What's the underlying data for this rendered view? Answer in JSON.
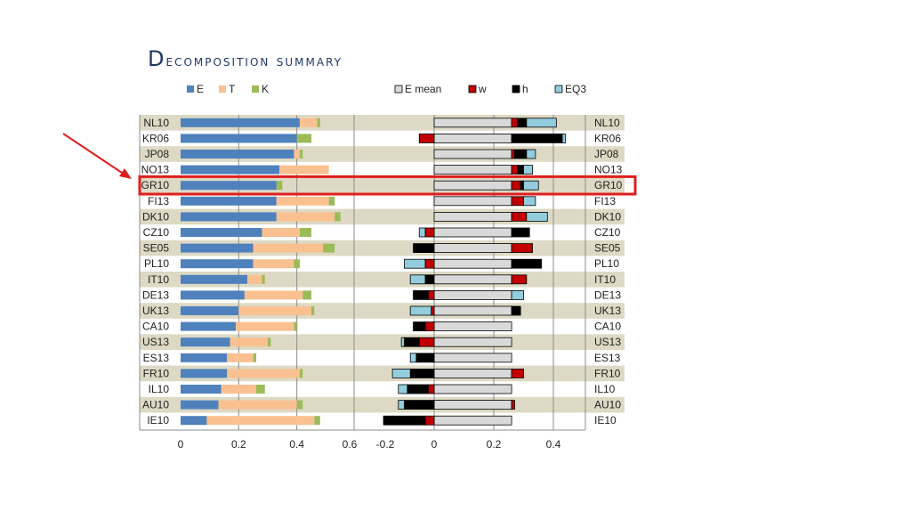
{
  "slide": {
    "title": "Decomposition summary"
  },
  "highlight": {
    "row": "GR10",
    "color": "#e01e1e"
  },
  "chart_data": [
    {
      "type": "bar",
      "stacked": true,
      "orientation": "horizontal",
      "categories": [
        "NL10",
        "KR06",
        "JP08",
        "NO13",
        "GR10",
        "FI13",
        "DK10",
        "CZ10",
        "SE05",
        "PL10",
        "IT10",
        "DE13",
        "UK13",
        "CA10",
        "US13",
        "ES13",
        "FR10",
        "IL10",
        "AU10",
        "IE10"
      ],
      "series": [
        {
          "name": "E",
          "color": "#4f81bd",
          "values": [
            0.41,
            0.4,
            0.39,
            0.34,
            0.33,
            0.33,
            0.33,
            0.28,
            0.25,
            0.25,
            0.23,
            0.22,
            0.2,
            0.19,
            0.17,
            0.16,
            0.16,
            0.14,
            0.13,
            0.09
          ]
        },
        {
          "name": "T",
          "color": "#fac090",
          "values": [
            0.06,
            0.0,
            0.02,
            0.17,
            0.0,
            0.18,
            0.2,
            0.13,
            0.24,
            0.14,
            0.05,
            0.2,
            0.25,
            0.2,
            0.13,
            0.09,
            0.25,
            0.12,
            0.27,
            0.37
          ]
        },
        {
          "name": "K",
          "color": "#9bbb59",
          "values": [
            0.01,
            0.05,
            0.01,
            0.0,
            0.02,
            0.02,
            0.02,
            0.04,
            0.04,
            0.02,
            0.01,
            0.03,
            0.01,
            0.01,
            0.01,
            0.01,
            0.01,
            0.03,
            0.02,
            0.02
          ]
        }
      ],
      "xlim": [
        0,
        0.6
      ],
      "xticks": [
        "0",
        "0.2",
        "0.4",
        "0.6"
      ],
      "legend": "top"
    },
    {
      "type": "bar",
      "stacked": true,
      "orientation": "horizontal",
      "categories": [
        "NL10",
        "KR06",
        "JP08",
        "NO13",
        "GR10",
        "FI13",
        "DK10",
        "CZ10",
        "SE05",
        "PL10",
        "IT10",
        "DE13",
        "UK13",
        "CA10",
        "US13",
        "ES13",
        "FR10",
        "IL10",
        "AU10",
        "IE10"
      ],
      "series": [
        {
          "name": "E mean",
          "color": "#d9d9d9",
          "values": [
            0.26,
            0.26,
            0.26,
            0.26,
            0.26,
            0.26,
            0.26,
            0.26,
            0.26,
            0.26,
            0.26,
            0.26,
            0.26,
            0.26,
            0.26,
            0.26,
            0.26,
            0.26,
            0.26,
            0.26
          ]
        },
        {
          "name": "w",
          "color": "#c00000",
          "values": [
            0.02,
            -0.05,
            0.01,
            0.02,
            0.03,
            0.04,
            0.05,
            -0.03,
            0.07,
            -0.03,
            0.05,
            -0.02,
            -0.01,
            -0.03,
            -0.05,
            0.0,
            0.04,
            -0.02,
            0.01,
            -0.03
          ]
        },
        {
          "name": "h",
          "color": "#000000",
          "values": [
            0.03,
            0.17,
            0.04,
            0.02,
            0.01,
            0.0,
            0.0,
            0.06,
            -0.07,
            0.1,
            -0.03,
            -0.05,
            0.03,
            -0.04,
            -0.05,
            -0.06,
            -0.08,
            -0.07,
            -0.1,
            -0.14
          ]
        },
        {
          "name": "EQ3",
          "color": "#93cddd",
          "values": [
            0.1,
            0.01,
            0.03,
            0.03,
            0.05,
            0.04,
            0.07,
            -0.02,
            0.0,
            -0.07,
            -0.05,
            0.04,
            -0.07,
            0.0,
            -0.01,
            -0.02,
            -0.06,
            -0.03,
            -0.02,
            0.0
          ]
        }
      ],
      "xlim": [
        -0.2,
        0.5
      ],
      "xticks": [
        "-0.2",
        "0",
        "0.2",
        "0.4"
      ],
      "legend": "top"
    }
  ]
}
